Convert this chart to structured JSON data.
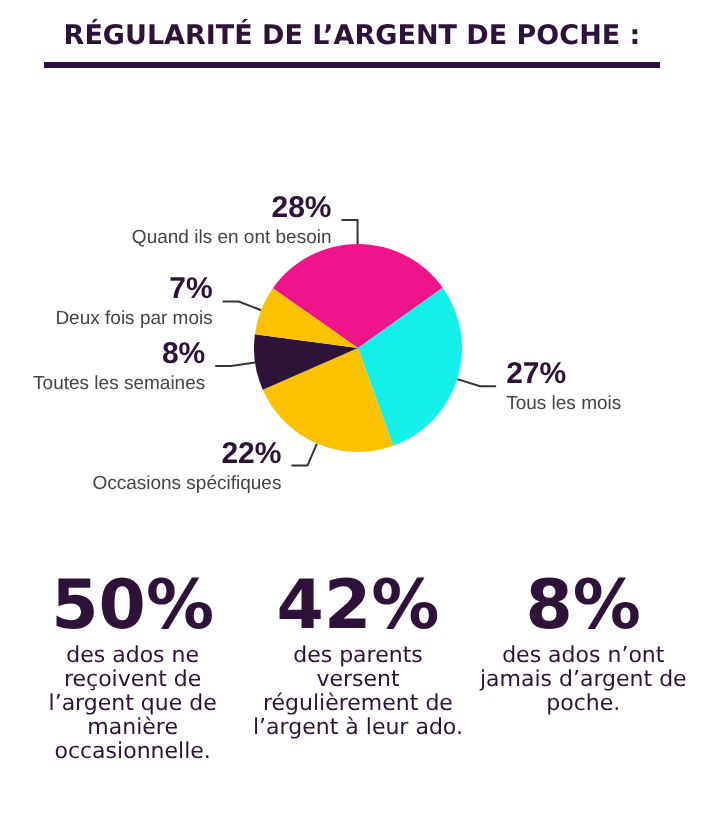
{
  "chart_data": {
    "type": "pie",
    "title": "RÉGULARITÉ DE L’ARGENT DE POCHE :",
    "categories": [
      "Quand ils en ont besoin",
      "Tous les mois",
      "Occasions spécifiques",
      "Toutes les semaines",
      "Deux fois par mois"
    ],
    "values": [
      28,
      27,
      22,
      8,
      7
    ],
    "value_labels": [
      "28%",
      "27%",
      "22%",
      "8%",
      "7%"
    ],
    "colors": [
      "#f0148c",
      "#13f0ea",
      "#fcc200",
      "#2e1338",
      "#fcc200"
    ],
    "legend": false,
    "annotations": [
      "50%",
      "des ados ne reçoivent de l’argent que de manière occasionnelle.",
      "42%",
      "des parents versent régulièrement de l’argent à leur ado.",
      "8%",
      "des ados n’ont jamais d’argent de poche."
    ]
  }
}
